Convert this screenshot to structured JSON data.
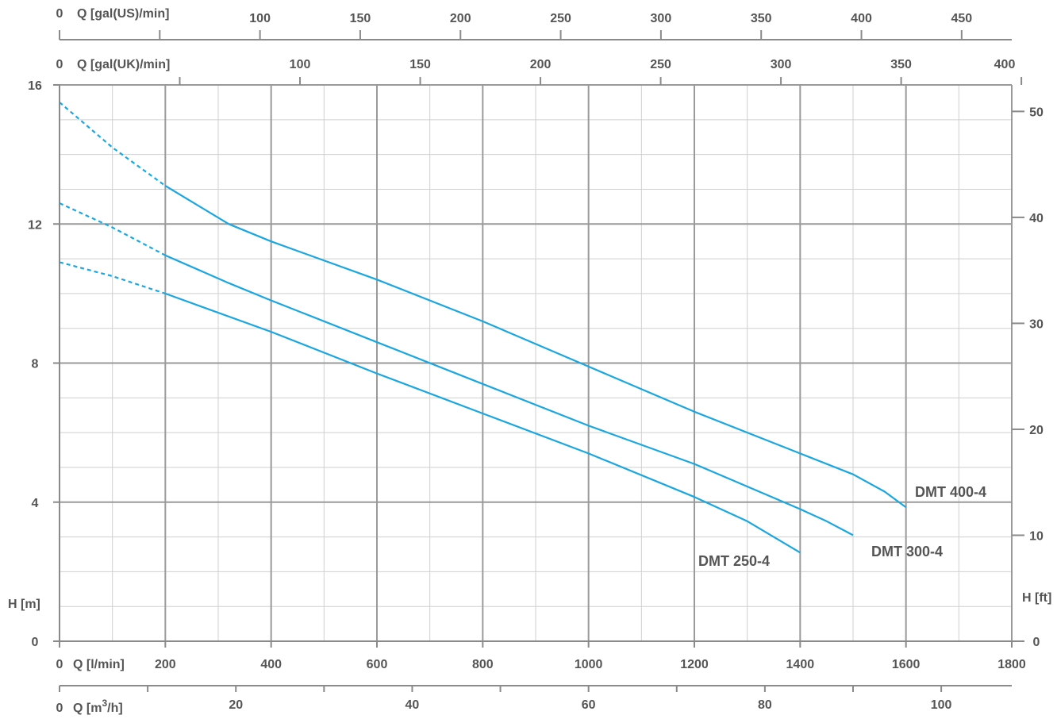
{
  "chart_data": {
    "type": "line",
    "colors": {
      "curve": "#1aa7e0",
      "major_grid": "#9a9a9a",
      "minor_grid": "#cfcfcf",
      "axis": "#8a8a8a",
      "text": "#555555"
    },
    "grid": true,
    "axes": {
      "x_lpm": {
        "label": "Q [l/min]",
        "range": [
          0,
          1800
        ],
        "ticks": [
          0,
          200,
          400,
          600,
          800,
          1000,
          1200,
          1400,
          1600,
          1800
        ],
        "zero_label": "0"
      },
      "x_m3h": {
        "label": "Q [m3/h]",
        "label_main": "Q [m",
        "label_sup": "3",
        "label_tail": "/h]",
        "range": [
          0,
          108
        ],
        "ticks": [
          0,
          20,
          40,
          60,
          80,
          100
        ],
        "zero_label": "0"
      },
      "x_gal_uk": {
        "label": "Q [gal(UK)/min]",
        "range": [
          0,
          396
        ],
        "ticks": [
          0,
          100,
          150,
          200,
          250,
          300,
          350,
          400
        ],
        "zero_label": "0"
      },
      "x_gal_us": {
        "label": "Q [gal(US)/min]",
        "range": [
          0,
          475
        ],
        "ticks": [
          0,
          100,
          150,
          200,
          250,
          300,
          350,
          400,
          450
        ],
        "zero_label": "0"
      },
      "y_m": {
        "label": "H [m]",
        "range": [
          0,
          16
        ],
        "ticks": [
          0,
          4,
          8,
          12,
          16
        ]
      },
      "y_ft": {
        "label": "H [ft]",
        "range": [
          0,
          52.5
        ],
        "ticks": [
          0,
          10,
          20,
          30,
          40,
          50
        ]
      }
    },
    "series": [
      {
        "name": "DMT 400-4",
        "dashed": [
          [
            0,
            15.5
          ],
          [
            100,
            14.2
          ],
          [
            200,
            13.1
          ]
        ],
        "solid": [
          [
            200,
            13.1
          ],
          [
            320,
            12.0
          ],
          [
            400,
            11.5
          ],
          [
            600,
            10.4
          ],
          [
            800,
            9.2
          ],
          [
            1000,
            7.9
          ],
          [
            1200,
            6.6
          ],
          [
            1400,
            5.4
          ],
          [
            1500,
            4.8
          ],
          [
            1560,
            4.3
          ],
          [
            1600,
            3.85
          ]
        ]
      },
      {
        "name": "DMT 300-4",
        "dashed": [
          [
            0,
            12.6
          ],
          [
            100,
            11.9
          ],
          [
            200,
            11.1
          ]
        ],
        "solid": [
          [
            200,
            11.1
          ],
          [
            320,
            10.3
          ],
          [
            400,
            9.8
          ],
          [
            600,
            8.6
          ],
          [
            800,
            7.4
          ],
          [
            1000,
            6.2
          ],
          [
            1200,
            5.1
          ],
          [
            1400,
            3.8
          ],
          [
            1450,
            3.45
          ],
          [
            1500,
            3.05
          ]
        ]
      },
      {
        "name": "DMT 250-4",
        "dashed": [
          [
            0,
            10.9
          ],
          [
            100,
            10.5
          ],
          [
            200,
            10.0
          ]
        ],
        "solid": [
          [
            200,
            10.0
          ],
          [
            400,
            8.9
          ],
          [
            600,
            7.7
          ],
          [
            800,
            6.55
          ],
          [
            1000,
            5.4
          ],
          [
            1200,
            4.15
          ],
          [
            1300,
            3.45
          ],
          [
            1400,
            2.55
          ]
        ]
      }
    ]
  }
}
